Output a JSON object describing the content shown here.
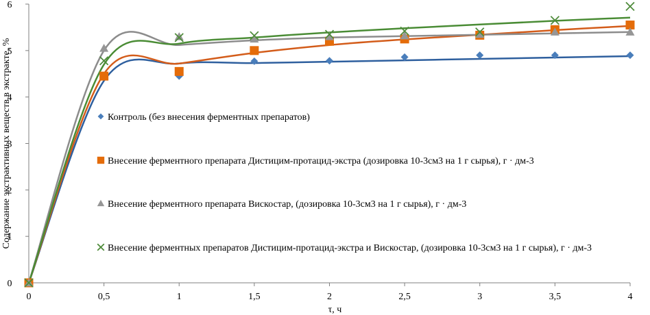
{
  "chart_data": {
    "type": "scatter",
    "title": "",
    "xlabel": "τ, ч",
    "ylabel": "Содержание экстрактивных веществ в экстракте, %",
    "xlim": [
      0,
      4
    ],
    "ylim": [
      0,
      6
    ],
    "x_ticks": [
      0,
      0.5,
      1,
      1.5,
      2,
      2.5,
      3,
      3.5,
      4
    ],
    "x_tick_labels": [
      "0",
      "0,5",
      "1",
      "1,5",
      "2",
      "2,5",
      "3",
      "3,5",
      "4"
    ],
    "y_ticks": [
      0,
      1,
      2,
      3,
      4,
      5,
      6
    ],
    "y_tick_labels": [
      "0",
      "1",
      "2",
      "3",
      "4",
      "5",
      "6"
    ],
    "grid": false,
    "legend_position": "inside-center",
    "trendlines": "smooth curves through each series",
    "series": [
      {
        "name": "Контроль (без внесения ферментных препаратов)",
        "marker": "diamond",
        "color": "#4a7ebb",
        "x": [
          0,
          0.5,
          1,
          1.5,
          2,
          2.5,
          3,
          3.5,
          4
        ],
        "y": [
          0,
          4.45,
          4.45,
          4.77,
          4.78,
          4.86,
          4.9,
          4.9,
          4.9
        ]
      },
      {
        "name": "Внесение ферментного препарата Дистицим-протацид-экстра (дозировка 10-3см3 на 1 г сырья), г · дм-3",
        "marker": "square",
        "color": "#e46c0a",
        "x": [
          0,
          0.5,
          1,
          1.5,
          2,
          2.5,
          3,
          3.5,
          4
        ],
        "y": [
          0,
          4.45,
          4.55,
          5.0,
          5.2,
          5.25,
          5.33,
          5.45,
          5.55
        ]
      },
      {
        "name": "Внесение ферментного препарата Вискостар, (дозировка 10-3см3 на 1 г сырья), г · дм-3",
        "marker": "triangle",
        "color": "#969696",
        "x": [
          0,
          0.5,
          1,
          1.5,
          2,
          2.5,
          3,
          3.5,
          4
        ],
        "y": [
          0,
          5.05,
          5.3,
          5.25,
          5.3,
          5.32,
          5.35,
          5.4,
          5.4
        ]
      },
      {
        "name": "Внесение ферментных препаратов Дистицим-протацид-экстра и Вискостар, (дозировка 10-3см3 на 1 г сырья), г · дм-3",
        "marker": "x",
        "color": "#4e8b3a",
        "x": [
          0,
          0.5,
          1,
          1.5,
          2,
          2.5,
          3,
          3.5,
          4
        ],
        "y": [
          0,
          4.78,
          5.28,
          5.32,
          5.35,
          5.42,
          5.4,
          5.65,
          5.95
        ]
      }
    ],
    "trend_colors": {
      "Контроль (без внесения ферментных препаратов)": "#2e5f9e",
      "Внесение ферментного препарата Дистицим-протацид-экстра (дозировка 10-3см3 на 1 г сырья), г · дм-3": "#d35c1a",
      "Внесение ферментного препарата Вискостар, (дозировка 10-3см3 на 1 г сырья), г · дм-3": "#8c8c8c",
      "Внесение ферментных препаратов Дистицим-протацид-экстра и Вискостар, (дозировка 10-3см3 на 1 г сырья), г · дм-3": "#4a8c35"
    },
    "trend_y": {
      "Контроль (без внесения ферментных препаратов)": [
        0,
        4.35,
        4.72,
        4.73,
        4.76,
        4.79,
        4.82,
        4.85,
        4.88
      ],
      "Внесение ферментного препарата Дистицим-протацид-экстра (дозировка 10-3см3 на 1 г сырья), г · дм-3": [
        0,
        4.5,
        4.72,
        4.95,
        5.12,
        5.24,
        5.34,
        5.44,
        5.53
      ],
      "Внесение ферментного препарата Вискостар, (дозировка 10-3см3 на 1 г сырья), г · дм-3": [
        0,
        5.0,
        5.12,
        5.22,
        5.28,
        5.31,
        5.34,
        5.37,
        5.4
      ],
      "Внесение ферментных препаратов Дистицим-протацид-экстра и Вискостар, (дозировка 10-3см3 на 1 г сырья), г · дм-3": [
        0,
        4.7,
        5.15,
        5.28,
        5.39,
        5.48,
        5.56,
        5.64,
        5.71
      ]
    }
  }
}
